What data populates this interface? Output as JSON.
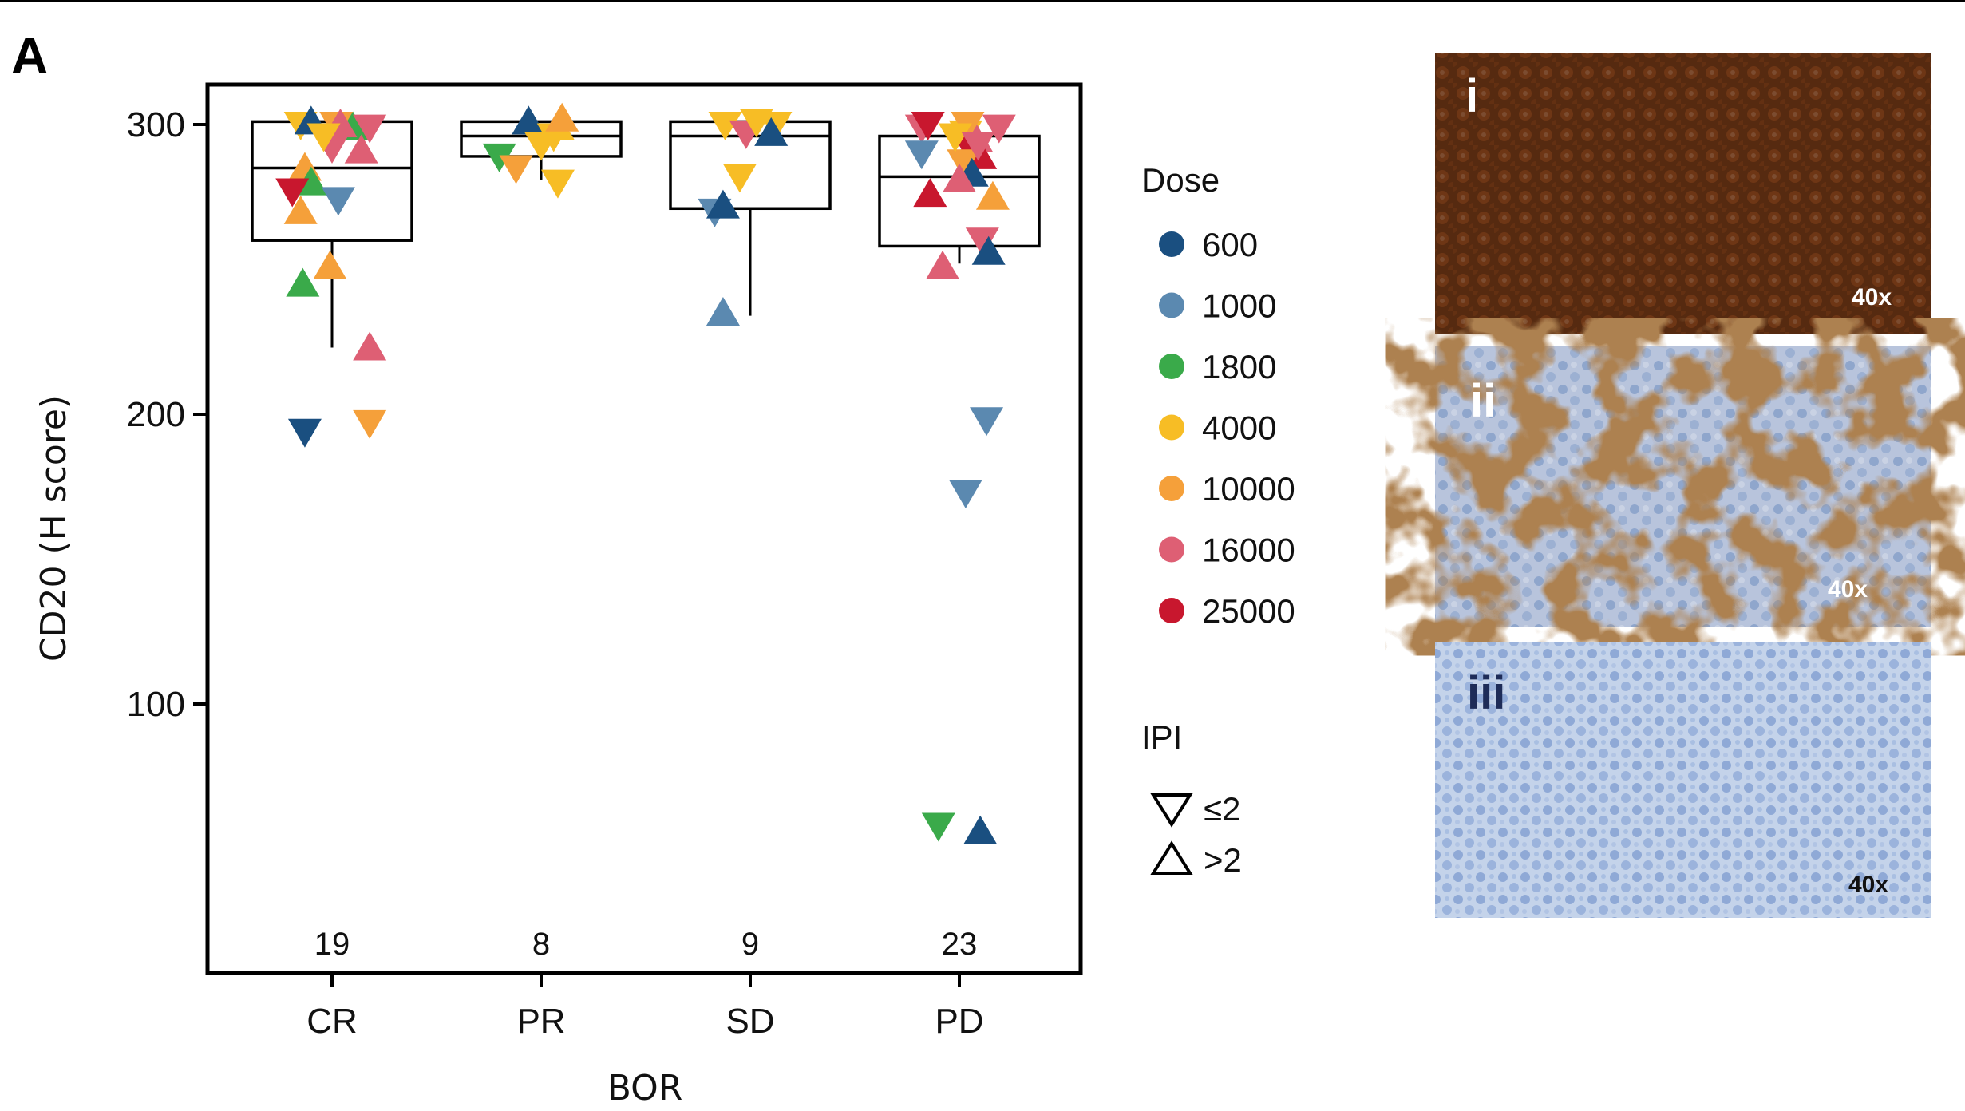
{
  "panel_label": "A",
  "chart_data": {
    "type": "box",
    "xlabel": "BOR",
    "ylabel": "CD20 (H score)",
    "categories": [
      "CR",
      "PR",
      "SD",
      "PD"
    ],
    "counts": [
      "19",
      "8",
      "9",
      "23"
    ],
    "y_ticks": [
      "100",
      "200",
      "300"
    ],
    "ylim": [
      10,
      315
    ],
    "grid": false,
    "boxes": [
      {
        "category": "CR",
        "q1": 260,
        "median": 285,
        "q3": 301,
        "whisker_low": 223,
        "whisker_high": 301
      },
      {
        "category": "PR",
        "q1": 289,
        "median": 296,
        "q3": 301,
        "whisker_low": 281,
        "whisker_high": 301
      },
      {
        "category": "SD",
        "q1": 271,
        "median": 296,
        "q3": 301,
        "whisker_low": 234,
        "whisker_high": 301
      },
      {
        "category": "PD",
        "q1": 258,
        "median": 282,
        "q3": 296,
        "whisker_low": 252,
        "whisker_high": 296
      }
    ],
    "legend": {
      "dose_title": "Dose",
      "doses": [
        {
          "label": "600",
          "color": "#1a4f80"
        },
        {
          "label": "1000",
          "color": "#5b89b0"
        },
        {
          "label": "1800",
          "color": "#3aaa4a"
        },
        {
          "label": "4000",
          "color": "#f7bd25"
        },
        {
          "label": "10000",
          "color": "#f5a03a"
        },
        {
          "label": "16000",
          "color": "#de5f74"
        },
        {
          "label": "25000",
          "color": "#c8172e"
        }
      ],
      "ipi_title": "IPI",
      "ipi": [
        {
          "label": "≤2",
          "shape": "triangle-down"
        },
        {
          "label": ">2",
          "shape": "triangle-up"
        }
      ],
      "placement": "right"
    },
    "points": [
      {
        "cat": "CR",
        "dx": -0.15,
        "y": 300,
        "dose": "4000",
        "shape": "down"
      },
      {
        "cat": "CR",
        "dx": -0.1,
        "y": 301,
        "dose": "600",
        "shape": "up"
      },
      {
        "cat": "CR",
        "dx": 0.02,
        "y": 300,
        "dose": "10000",
        "shape": "down"
      },
      {
        "cat": "CR",
        "dx": 0.1,
        "y": 299,
        "dose": "1800",
        "shape": "up"
      },
      {
        "cat": "CR",
        "dx": 0.04,
        "y": 300,
        "dose": "16000",
        "shape": "up"
      },
      {
        "cat": "CR",
        "dx": 0.18,
        "y": 299,
        "dose": "16000",
        "shape": "down"
      },
      {
        "cat": "CR",
        "dx": 0.0,
        "y": 292,
        "dose": "16000",
        "shape": "down"
      },
      {
        "cat": "CR",
        "dx": 0.14,
        "y": 291,
        "dose": "16000",
        "shape": "up"
      },
      {
        "cat": "CR",
        "dx": -0.13,
        "y": 285,
        "dose": "10000",
        "shape": "up"
      },
      {
        "cat": "CR",
        "dx": -0.1,
        "y": 280,
        "dose": "1800",
        "shape": "up"
      },
      {
        "cat": "CR",
        "dx": -0.19,
        "y": 277,
        "dose": "25000",
        "shape": "down"
      },
      {
        "cat": "CR",
        "dx": 0.03,
        "y": 274,
        "dose": "1000",
        "shape": "down"
      },
      {
        "cat": "CR",
        "dx": -0.15,
        "y": 270,
        "dose": "10000",
        "shape": "up"
      },
      {
        "cat": "CR",
        "dx": -0.01,
        "y": 251,
        "dose": "10000",
        "shape": "up"
      },
      {
        "cat": "CR",
        "dx": -0.14,
        "y": 245,
        "dose": "1800",
        "shape": "up"
      },
      {
        "cat": "CR",
        "dx": 0.18,
        "y": 223,
        "dose": "16000",
        "shape": "up"
      },
      {
        "cat": "CR",
        "dx": -0.13,
        "y": 194,
        "dose": "600",
        "shape": "down"
      },
      {
        "cat": "CR",
        "dx": 0.18,
        "y": 197,
        "dose": "10000",
        "shape": "down"
      },
      {
        "cat": "CR",
        "dx": -0.04,
        "y": 296,
        "dose": "4000",
        "shape": "down"
      },
      {
        "cat": "PR",
        "dx": -0.2,
        "y": 289,
        "dose": "1800",
        "shape": "down"
      },
      {
        "cat": "PR",
        "dx": -0.12,
        "y": 285,
        "dose": "10000",
        "shape": "down"
      },
      {
        "cat": "PR",
        "dx": -0.06,
        "y": 301,
        "dose": "600",
        "shape": "up"
      },
      {
        "cat": "PR",
        "dx": 0.06,
        "y": 296,
        "dose": "4000",
        "shape": "down"
      },
      {
        "cat": "PR",
        "dx": 0.08,
        "y": 299,
        "dose": "4000",
        "shape": "up"
      },
      {
        "cat": "PR",
        "dx": 0.1,
        "y": 302,
        "dose": "10000",
        "shape": "up"
      },
      {
        "cat": "PR",
        "dx": 0.08,
        "y": 280,
        "dose": "4000",
        "shape": "down"
      },
      {
        "cat": "PR",
        "dx": 0.0,
        "y": 293,
        "dose": "4000",
        "shape": "down"
      },
      {
        "cat": "SD",
        "dx": -0.12,
        "y": 300,
        "dose": "4000",
        "shape": "down"
      },
      {
        "cat": "SD",
        "dx": -0.02,
        "y": 297,
        "dose": "16000",
        "shape": "down"
      },
      {
        "cat": "SD",
        "dx": 0.12,
        "y": 300,
        "dose": "4000",
        "shape": "down"
      },
      {
        "cat": "SD",
        "dx": 0.1,
        "y": 297,
        "dose": "600",
        "shape": "up"
      },
      {
        "cat": "SD",
        "dx": -0.05,
        "y": 282,
        "dose": "4000",
        "shape": "down"
      },
      {
        "cat": "SD",
        "dx": -0.17,
        "y": 270,
        "dose": "1000",
        "shape": "down"
      },
      {
        "cat": "SD",
        "dx": -0.13,
        "y": 272,
        "dose": "600",
        "shape": "up"
      },
      {
        "cat": "SD",
        "dx": -0.13,
        "y": 235,
        "dose": "1000",
        "shape": "up"
      },
      {
        "cat": "SD",
        "dx": 0.03,
        "y": 301,
        "dose": "4000",
        "shape": "down"
      },
      {
        "cat": "PD",
        "dx": -0.18,
        "y": 299,
        "dose": "16000",
        "shape": "down"
      },
      {
        "cat": "PD",
        "dx": -0.15,
        "y": 300,
        "dose": "25000",
        "shape": "down"
      },
      {
        "cat": "PD",
        "dx": -0.18,
        "y": 290,
        "dose": "1000",
        "shape": "down"
      },
      {
        "cat": "PD",
        "dx": 0.03,
        "y": 297,
        "dose": "4000",
        "shape": "down"
      },
      {
        "cat": "PD",
        "dx": 0.19,
        "y": 299,
        "dose": "16000",
        "shape": "down"
      },
      {
        "cat": "PD",
        "dx": 0.08,
        "y": 295,
        "dose": "16000",
        "shape": "up"
      },
      {
        "cat": "PD",
        "dx": 0.05,
        "y": 292,
        "dose": "25000",
        "shape": "down"
      },
      {
        "cat": "PD",
        "dx": 0.1,
        "y": 289,
        "dose": "25000",
        "shape": "up"
      },
      {
        "cat": "PD",
        "dx": 0.02,
        "y": 287,
        "dose": "10000",
        "shape": "down"
      },
      {
        "cat": "PD",
        "dx": 0.06,
        "y": 283,
        "dose": "600",
        "shape": "up"
      },
      {
        "cat": "PD",
        "dx": 0.0,
        "y": 281,
        "dose": "16000",
        "shape": "up"
      },
      {
        "cat": "PD",
        "dx": -0.14,
        "y": 276,
        "dose": "25000",
        "shape": "up"
      },
      {
        "cat": "PD",
        "dx": 0.16,
        "y": 275,
        "dose": "10000",
        "shape": "up"
      },
      {
        "cat": "PD",
        "dx": 0.11,
        "y": 260,
        "dose": "16000",
        "shape": "down"
      },
      {
        "cat": "PD",
        "dx": 0.14,
        "y": 256,
        "dose": "600",
        "shape": "up"
      },
      {
        "cat": "PD",
        "dx": -0.08,
        "y": 251,
        "dose": "16000",
        "shape": "up"
      },
      {
        "cat": "PD",
        "dx": 0.13,
        "y": 198,
        "dose": "1000",
        "shape": "down"
      },
      {
        "cat": "PD",
        "dx": 0.03,
        "y": 173,
        "dose": "1000",
        "shape": "down"
      },
      {
        "cat": "PD",
        "dx": -0.1,
        "y": 58,
        "dose": "1800",
        "shape": "down"
      },
      {
        "cat": "PD",
        "dx": 0.1,
        "y": 56,
        "dose": "600",
        "shape": "up"
      },
      {
        "cat": "PD",
        "dx": 0.04,
        "y": 300,
        "dose": "10000",
        "shape": "down"
      },
      {
        "cat": "PD",
        "dx": -0.02,
        "y": 296,
        "dose": "4000",
        "shape": "down"
      },
      {
        "cat": "PD",
        "dx": 0.09,
        "y": 293,
        "dose": "16000",
        "shape": "down"
      }
    ]
  },
  "micrographs": [
    {
      "roman": "i",
      "magnification": "40x",
      "stain": "strong",
      "mag_color": "#ffffff"
    },
    {
      "roman": "ii",
      "magnification": "40x",
      "stain": "moderate",
      "mag_color": "#ffffff"
    },
    {
      "roman": "iii",
      "magnification": "40x",
      "stain": "negative",
      "mag_color": "#111111"
    }
  ]
}
